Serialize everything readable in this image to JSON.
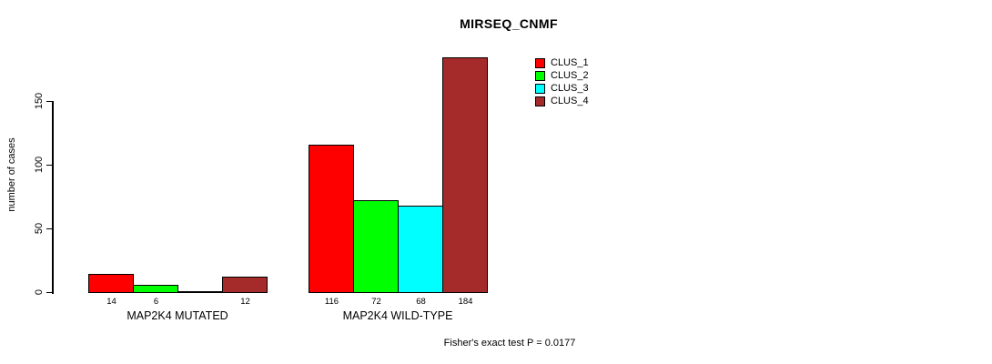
{
  "chart_data": {
    "type": "bar",
    "title": "MIRSEQ_CNMF",
    "ylabel": "number of cases",
    "xlabel": "",
    "categories": [
      "MAP2K4 MUTATED",
      "MAP2K4 WILD-TYPE"
    ],
    "series": [
      {
        "name": "CLUS_1",
        "color": "#FF0000",
        "values": [
          14,
          116
        ]
      },
      {
        "name": "CLUS_2",
        "color": "#00FF00",
        "values": [
          6,
          72
        ]
      },
      {
        "name": "CLUS_3",
        "color": "#00FFFF",
        "values": [
          0,
          68
        ]
      },
      {
        "name": "CLUS_4",
        "color": "#A52A2A",
        "values": [
          12,
          184
        ]
      }
    ],
    "yticks": [
      0,
      50,
      100,
      150
    ],
    "ylim": [
      0,
      196
    ],
    "grid": false,
    "legend_position": "upper-right-outside",
    "bar_value_labels_shown": true,
    "zero_bars_drawn_as_baseline_segment": true,
    "annotation": "Fisher's exact test P = 0.0177"
  }
}
